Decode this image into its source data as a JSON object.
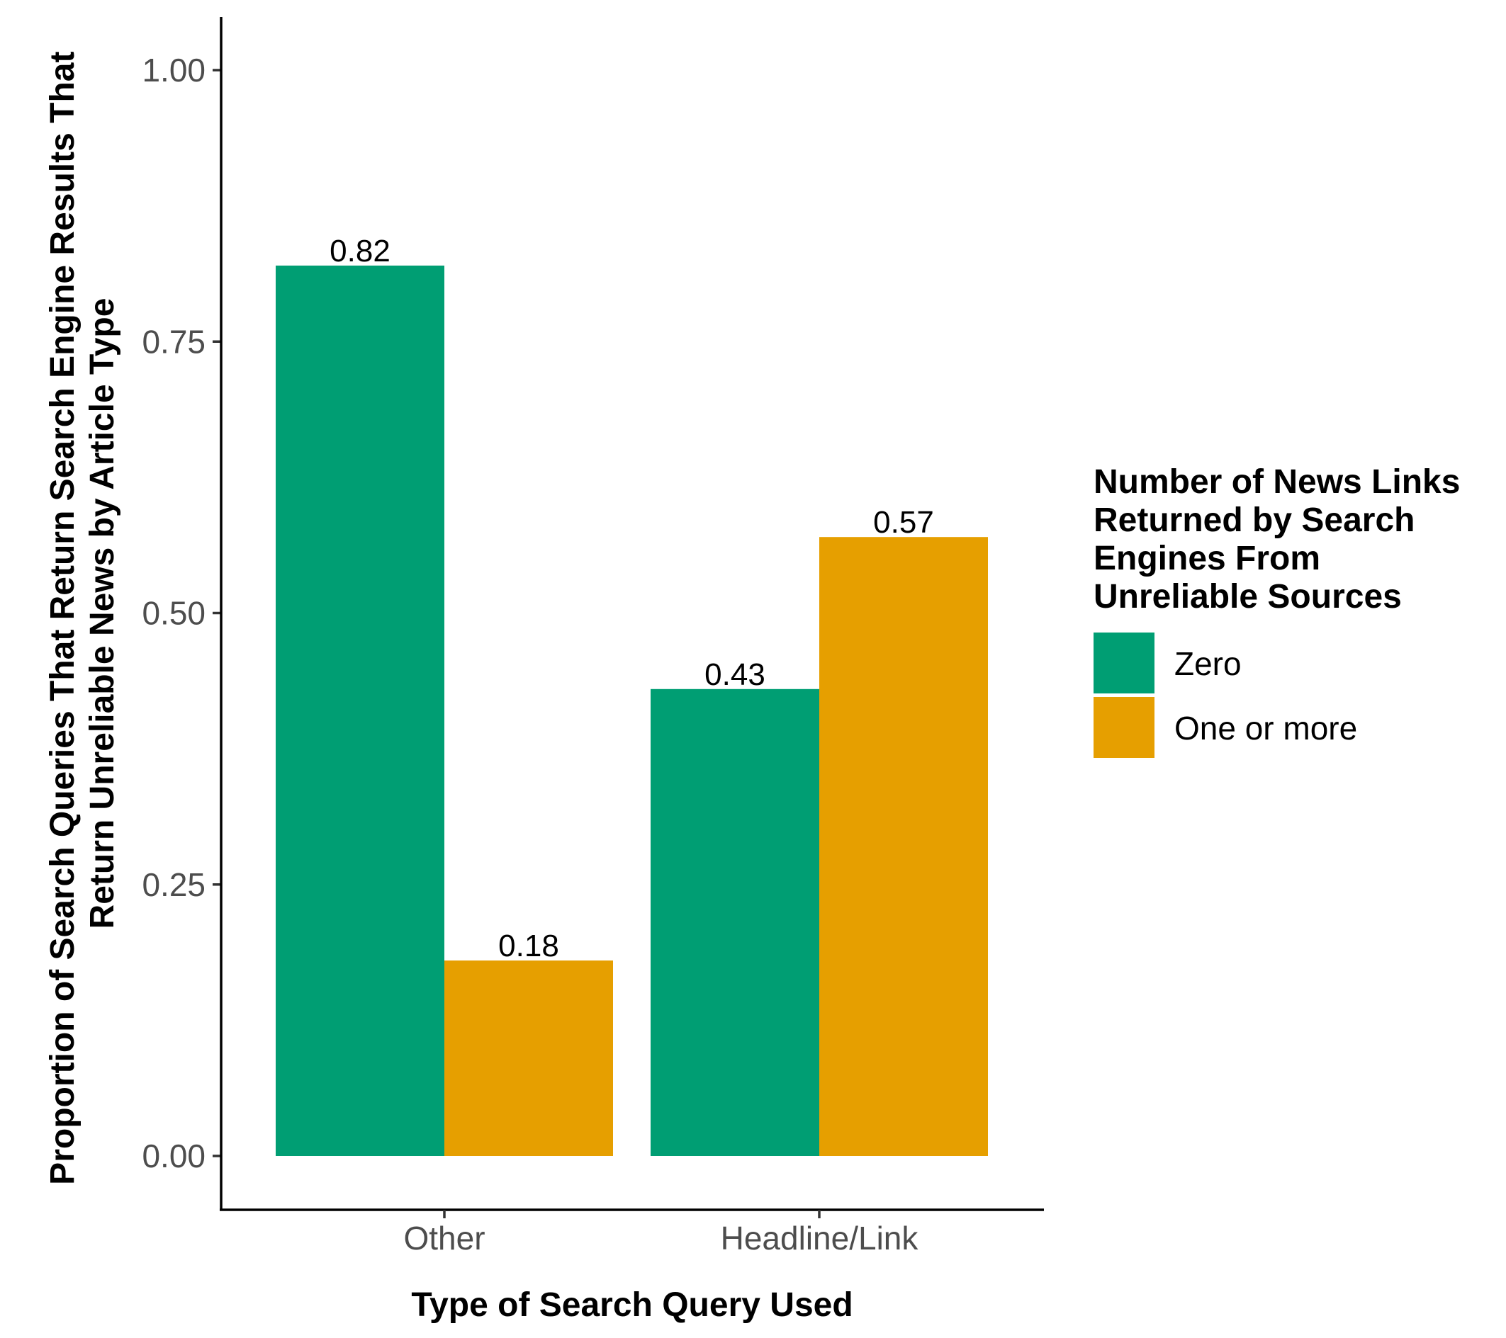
{
  "chart_data": {
    "type": "bar",
    "categories": [
      "Other",
      "Headline/Link"
    ],
    "series": [
      {
        "name": "Zero",
        "values": [
          0.82,
          0.43
        ],
        "labels": [
          "0.82",
          "0.43"
        ],
        "color": "#009E73"
      },
      {
        "name": "One or more",
        "values": [
          0.18,
          0.57
        ],
        "labels": [
          "0.18",
          "0.57"
        ],
        "color": "#E69F00"
      }
    ],
    "xlabel": "Type of Search Query Used",
    "ylabel": [
      "Proportion of Search Queries That Return Search Engine Results That",
      "Return Unreliable News by Article Type"
    ],
    "ylim": [
      -0.05,
      1.05
    ],
    "yticks": [
      0,
      0.25,
      0.5,
      0.75,
      1.0
    ],
    "ytick_labels": [
      "0.00",
      "0.25",
      "0.50",
      "0.75",
      "1.00"
    ],
    "legend": {
      "title": [
        "Number of News Links",
        "Returned by Search",
        "Engines From",
        "Unreliable Sources"
      ],
      "position": "right"
    },
    "grid": false
  }
}
